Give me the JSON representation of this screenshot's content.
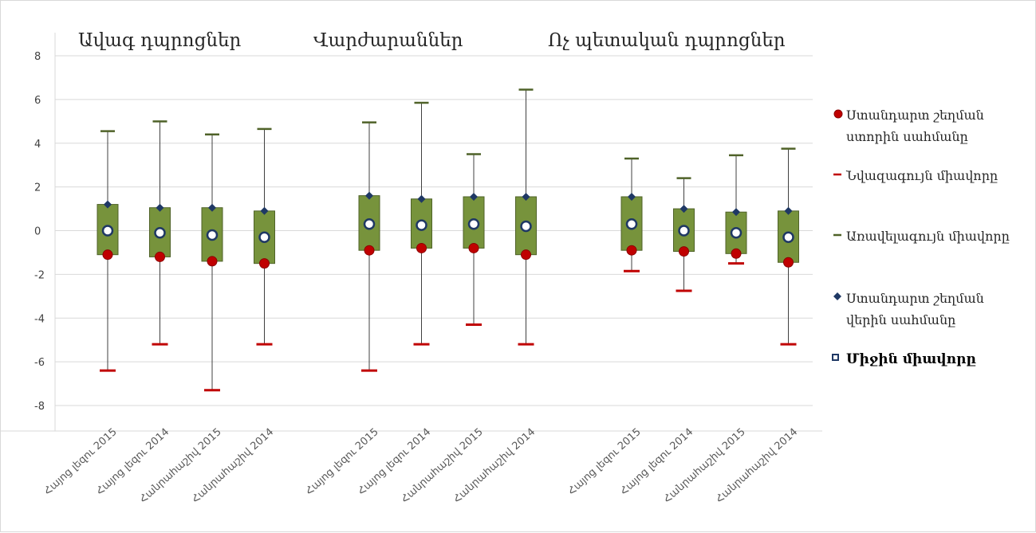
{
  "chart_data": {
    "type": "box",
    "ylim": [
      -8,
      8
    ],
    "yticks": [
      8,
      6,
      4,
      2,
      0,
      -2,
      -4,
      -6,
      -8
    ],
    "grid": true,
    "legend_position": "right",
    "colors": {
      "box": "#77933c",
      "box_border": "#4f6228",
      "whisker": "#404040",
      "max_marker": "#4f6228",
      "min_marker": "#c00000",
      "lower_sd": "#c00000",
      "upper_sd": "#1f3864",
      "mean_fill": "#ffffff",
      "mean_border": "#1f3864"
    },
    "groups": [
      {
        "title": "Ավագ դպրոցներ",
        "categories": [
          {
            "label": "Հայոց լեզու 2015",
            "max": 4.55,
            "min": -6.4,
            "upper_sd": 1.2,
            "lower_sd": -1.1,
            "mean": 0.0
          },
          {
            "label": "Հայոց լեզու 2014",
            "max": 5.0,
            "min": -5.2,
            "upper_sd": 1.05,
            "lower_sd": -1.2,
            "mean": -0.1
          },
          {
            "label": "Հանրահաշիվ 2015",
            "max": 4.4,
            "min": -7.3,
            "upper_sd": 1.05,
            "lower_sd": -1.4,
            "mean": -0.2
          },
          {
            "label": "Հանրահաշիվ 2014",
            "max": 4.65,
            "min": -5.2,
            "upper_sd": 0.9,
            "lower_sd": -1.5,
            "mean": -0.3
          }
        ]
      },
      {
        "title": "Վարժարաններ",
        "categories": [
          {
            "label": "Հայոց լեզու 2015",
            "max": 4.95,
            "min": -6.4,
            "upper_sd": 1.6,
            "lower_sd": -0.9,
            "mean": 0.3
          },
          {
            "label": "Հայոց լեզու 2014",
            "max": 5.85,
            "min": -5.2,
            "upper_sd": 1.45,
            "lower_sd": -0.8,
            "mean": 0.25
          },
          {
            "label": "Հանրահաշիվ 2015",
            "max": 3.5,
            "min": -4.3,
            "upper_sd": 1.55,
            "lower_sd": -0.8,
            "mean": 0.3
          },
          {
            "label": "Հանրահաշիվ 2014",
            "max": 6.45,
            "min": -5.2,
            "upper_sd": 1.55,
            "lower_sd": -1.1,
            "mean": 0.2
          }
        ]
      },
      {
        "title": "Ոչ պետական դպրոցներ",
        "categories": [
          {
            "label": "Հայոց լեզու 2015",
            "max": 3.3,
            "min": -1.85,
            "upper_sd": 1.55,
            "lower_sd": -0.9,
            "mean": 0.3
          },
          {
            "label": "Հայոց լեզու 2014",
            "max": 2.4,
            "min": -2.75,
            "upper_sd": 1.0,
            "lower_sd": -0.95,
            "mean": 0.0
          },
          {
            "label": "Հանրահաշիվ 2015",
            "max": 3.45,
            "min": -1.5,
            "upper_sd": 0.85,
            "lower_sd": -1.05,
            "mean": -0.1
          },
          {
            "label": "Հանրահաշիվ 2014",
            "max": 3.75,
            "min": -5.2,
            "upper_sd": 0.9,
            "lower_sd": -1.45,
            "mean": -0.3
          }
        ]
      }
    ]
  },
  "legend": [
    {
      "key": "lower_sd",
      "label": "Ստանդարտ շեղման ստորին սահմանը",
      "marker": "circle-red"
    },
    {
      "key": "min",
      "label": "Նվազագույն միավորը",
      "marker": "dash-red"
    },
    {
      "key": "max",
      "label": "Առավելագույն միավորը",
      "marker": "dash-green"
    },
    {
      "key": "upper_sd",
      "label": "Ստանդարտ շեղման վերին սահմանը",
      "marker": "diamond-navy"
    },
    {
      "key": "mean",
      "label": "Միջին միավորը",
      "marker": "square-hollow"
    }
  ]
}
